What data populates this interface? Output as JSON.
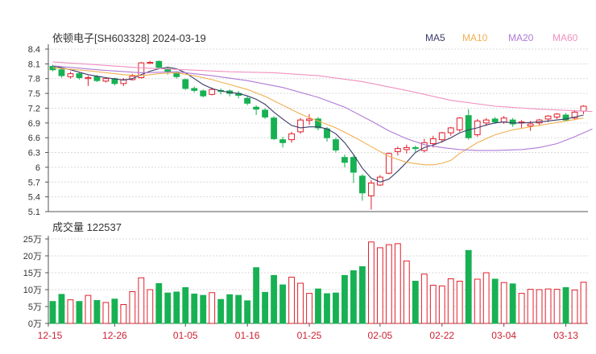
{
  "title": "依顿电子[SH603328] 2024-03-19",
  "colors": {
    "up": "#e0202c",
    "down": "#17b153",
    "grid": "#d9d9d9",
    "axis": "#555555"
  },
  "legend": [
    {
      "name": "MA5",
      "color": "#3a3a6a"
    },
    {
      "name": "MA10",
      "color": "#f0b050"
    },
    {
      "name": "MA20",
      "color": "#b07ad6"
    },
    {
      "name": "MA60",
      "color": "#f090c0"
    }
  ],
  "volume_label": "成交量 122537",
  "chart_data": [
    {
      "type": "candlestick",
      "y_ticks": [
        "5.1",
        "5.4",
        "5.7",
        "6",
        "6.3",
        "6.6",
        "6.9",
        "7.2",
        "7.5",
        "7.8",
        "8.1",
        "8.4"
      ],
      "ylim": [
        5.1,
        8.4
      ],
      "x_ticks": [
        {
          "label": "12-15",
          "index": 0
        },
        {
          "label": "12-26",
          "index": 7
        },
        {
          "label": "01-05",
          "index": 15
        },
        {
          "label": "01-16",
          "index": 22
        },
        {
          "label": "01-25",
          "index": 29
        },
        {
          "label": "02-05",
          "index": 37
        },
        {
          "label": "02-22",
          "index": 44
        },
        {
          "label": "03-04",
          "index": 51
        },
        {
          "label": "03-13",
          "index": 58
        }
      ],
      "candles": [
        [
          8.05,
          7.98,
          8.08,
          7.95
        ],
        [
          7.98,
          7.86,
          8.0,
          7.82
        ],
        [
          7.84,
          7.9,
          7.94,
          7.8
        ],
        [
          7.9,
          7.82,
          7.93,
          7.78
        ],
        [
          7.8,
          7.82,
          7.86,
          7.65
        ],
        [
          7.84,
          7.76,
          7.87,
          7.73
        ],
        [
          7.75,
          7.8,
          7.83,
          7.72
        ],
        [
          7.8,
          7.7,
          7.82,
          7.66
        ],
        [
          7.7,
          7.78,
          7.81,
          7.65
        ],
        [
          7.78,
          7.85,
          7.9,
          7.76
        ],
        [
          7.82,
          8.12,
          8.14,
          7.8
        ],
        [
          8.12,
          8.13,
          8.16,
          8.1
        ],
        [
          8.15,
          8.03,
          8.17,
          7.99
        ],
        [
          8.0,
          7.94,
          8.03,
          7.88
        ],
        [
          7.92,
          7.84,
          7.95,
          7.8
        ],
        [
          7.78,
          7.6,
          7.8,
          7.57
        ],
        [
          7.6,
          7.56,
          7.64,
          7.52
        ],
        [
          7.55,
          7.45,
          7.58,
          7.42
        ],
        [
          7.48,
          7.58,
          7.62,
          7.46
        ],
        [
          7.56,
          7.54,
          7.6,
          7.48
        ],
        [
          7.55,
          7.5,
          7.58,
          7.44
        ],
        [
          7.5,
          7.46,
          7.55,
          7.4
        ],
        [
          7.4,
          7.3,
          7.44,
          7.26
        ],
        [
          7.22,
          7.18,
          7.26,
          7.06
        ],
        [
          7.16,
          7.02,
          7.2,
          6.98
        ],
        [
          7.0,
          6.58,
          7.04,
          6.55
        ],
        [
          6.56,
          6.5,
          6.62,
          6.4
        ],
        [
          6.56,
          6.68,
          6.72,
          6.5
        ],
        [
          6.72,
          6.96,
          7.0,
          6.68
        ],
        [
          6.95,
          6.98,
          7.08,
          6.86
        ],
        [
          6.98,
          6.8,
          7.02,
          6.75
        ],
        [
          6.78,
          6.6,
          6.82,
          6.52
        ],
        [
          6.56,
          6.35,
          6.6,
          6.3
        ],
        [
          6.2,
          6.1,
          6.26,
          6.0
        ],
        [
          6.2,
          5.9,
          6.24,
          5.68
        ],
        [
          5.82,
          5.48,
          5.86,
          5.32
        ],
        [
          5.42,
          5.68,
          5.74,
          5.14
        ],
        [
          5.64,
          5.8,
          5.84,
          5.62
        ],
        [
          5.88,
          6.28,
          6.3,
          5.86
        ],
        [
          6.32,
          6.38,
          6.42,
          6.24
        ],
        [
          6.36,
          6.4,
          6.46,
          6.28
        ],
        [
          6.4,
          6.38,
          6.44,
          6.3
        ],
        [
          6.34,
          6.5,
          6.58,
          6.3
        ],
        [
          6.48,
          6.58,
          6.64,
          6.4
        ],
        [
          6.56,
          6.7,
          6.72,
          6.5
        ],
        [
          6.7,
          6.8,
          6.82,
          6.64
        ],
        [
          6.76,
          7.0,
          7.02,
          6.72
        ],
        [
          7.05,
          6.6,
          7.18,
          6.56
        ],
        [
          6.66,
          6.94,
          6.98,
          6.62
        ],
        [
          6.9,
          6.96,
          7.0,
          6.84
        ],
        [
          6.98,
          6.92,
          7.02,
          6.88
        ],
        [
          6.92,
          7.0,
          7.04,
          6.88
        ],
        [
          6.96,
          6.88,
          7.0,
          6.82
        ],
        [
          6.9,
          6.92,
          6.96,
          6.8
        ],
        [
          6.84,
          6.88,
          6.94,
          6.74
        ],
        [
          6.9,
          6.96,
          6.98,
          6.84
        ],
        [
          6.98,
          7.04,
          7.06,
          6.92
        ],
        [
          7.02,
          7.08,
          7.1,
          6.98
        ],
        [
          7.06,
          6.96,
          7.1,
          6.94
        ],
        [
          7.0,
          7.12,
          7.16,
          6.96
        ],
        [
          7.14,
          7.24,
          7.26,
          7.08
        ]
      ],
      "ma": {
        "MA5": [
          [
            0,
            8.06
          ],
          [
            2,
            7.98
          ],
          [
            4,
            7.88
          ],
          [
            6,
            7.82
          ],
          [
            8,
            7.77
          ],
          [
            9,
            7.8
          ],
          [
            10,
            7.88
          ],
          [
            11,
            7.95
          ],
          [
            12,
            8.0
          ],
          [
            13,
            8.03
          ],
          [
            14,
            8.0
          ],
          [
            15,
            7.92
          ],
          [
            16,
            7.8
          ],
          [
            17,
            7.68
          ],
          [
            18,
            7.6
          ],
          [
            19,
            7.55
          ],
          [
            20,
            7.52
          ],
          [
            21,
            7.5
          ],
          [
            22,
            7.45
          ],
          [
            23,
            7.38
          ],
          [
            24,
            7.28
          ],
          [
            25,
            7.12
          ],
          [
            26,
            6.98
          ],
          [
            27,
            6.85
          ],
          [
            28,
            6.8
          ],
          [
            29,
            6.82
          ],
          [
            30,
            6.82
          ],
          [
            31,
            6.78
          ],
          [
            32,
            6.68
          ],
          [
            33,
            6.5
          ],
          [
            34,
            6.26
          ],
          [
            35,
            5.98
          ],
          [
            36,
            5.78
          ],
          [
            37,
            5.7
          ],
          [
            38,
            5.76
          ],
          [
            39,
            5.92
          ],
          [
            40,
            6.1
          ],
          [
            41,
            6.3
          ],
          [
            42,
            6.4
          ],
          [
            43,
            6.45
          ],
          [
            44,
            6.52
          ],
          [
            45,
            6.6
          ],
          [
            46,
            6.7
          ],
          [
            47,
            6.76
          ],
          [
            48,
            6.8
          ],
          [
            49,
            6.86
          ],
          [
            50,
            6.9
          ],
          [
            51,
            6.92
          ],
          [
            52,
            6.9
          ],
          [
            53,
            6.9
          ],
          [
            54,
            6.91
          ],
          [
            55,
            6.92
          ],
          [
            56,
            6.94
          ],
          [
            57,
            6.96
          ],
          [
            58,
            6.98
          ],
          [
            59,
            7.02
          ],
          [
            60,
            7.06
          ]
        ],
        "MA10": [
          [
            0,
            8.02
          ],
          [
            4,
            7.96
          ],
          [
            8,
            7.88
          ],
          [
            10,
            7.86
          ],
          [
            12,
            7.9
          ],
          [
            14,
            7.92
          ],
          [
            16,
            7.86
          ],
          [
            18,
            7.78
          ],
          [
            20,
            7.68
          ],
          [
            22,
            7.58
          ],
          [
            24,
            7.44
          ],
          [
            26,
            7.26
          ],
          [
            28,
            7.08
          ],
          [
            30,
            6.94
          ],
          [
            32,
            6.8
          ],
          [
            34,
            6.62
          ],
          [
            36,
            6.42
          ],
          [
            38,
            6.22
          ],
          [
            40,
            6.1
          ],
          [
            42,
            6.05
          ],
          [
            43,
            6.05
          ],
          [
            44,
            6.08
          ],
          [
            45,
            6.14
          ],
          [
            46,
            6.28
          ],
          [
            48,
            6.5
          ],
          [
            50,
            6.66
          ],
          [
            52,
            6.76
          ],
          [
            54,
            6.82
          ],
          [
            56,
            6.88
          ],
          [
            58,
            6.94
          ],
          [
            60,
            7.0
          ]
        ],
        "MA20": [
          [
            0,
            8.06
          ],
          [
            5,
            7.98
          ],
          [
            10,
            7.92
          ],
          [
            14,
            7.94
          ],
          [
            18,
            7.86
          ],
          [
            22,
            7.76
          ],
          [
            26,
            7.62
          ],
          [
            30,
            7.42
          ],
          [
            33,
            7.22
          ],
          [
            36,
            6.94
          ],
          [
            38,
            6.74
          ],
          [
            40,
            6.58
          ],
          [
            42,
            6.46
          ],
          [
            44,
            6.4
          ],
          [
            46,
            6.36
          ],
          [
            48,
            6.34
          ],
          [
            50,
            6.34
          ],
          [
            53,
            6.36
          ],
          [
            55,
            6.4
          ],
          [
            57,
            6.48
          ],
          [
            59,
            6.62
          ],
          [
            61,
            6.78
          ]
        ],
        "MA60": [
          [
            0,
            8.14
          ],
          [
            5,
            8.08
          ],
          [
            10,
            8.02
          ],
          [
            15,
            7.98
          ],
          [
            20,
            7.94
          ],
          [
            25,
            7.92
          ],
          [
            30,
            7.86
          ],
          [
            35,
            7.74
          ],
          [
            40,
            7.56
          ],
          [
            45,
            7.36
          ],
          [
            50,
            7.24
          ],
          [
            55,
            7.18
          ],
          [
            60,
            7.14
          ],
          [
            61,
            7.13
          ]
        ]
      }
    },
    {
      "type": "bar",
      "y_ticks": [
        "0万",
        "5万",
        "10万",
        "15万",
        "20万",
        "25万"
      ],
      "ylim": [
        0,
        25
      ],
      "values": [
        6.5,
        8.6,
        7.0,
        6.5,
        8.3,
        6.8,
        6.2,
        7.2,
        5.6,
        9.4,
        13.5,
        10.0,
        11.8,
        9.0,
        9.3,
        10.6,
        8.7,
        8.3,
        9.1,
        7.1,
        8.5,
        8.3,
        6.7,
        16.5,
        9.2,
        14.2,
        11.4,
        13.7,
        11.9,
        8.9,
        10.2,
        8.8,
        9.0,
        14.2,
        15.6,
        16.8,
        24.1,
        22.4,
        23.3,
        23.6,
        18.5,
        12.5,
        14.6,
        11.3,
        11.1,
        13.2,
        12.5,
        21.6,
        13.1,
        15.0,
        13.1,
        12.1,
        11.7,
        8.9,
        10.1,
        10.0,
        10.2,
        10.1,
        10.6,
        9.9,
        12.2
      ]
    }
  ]
}
